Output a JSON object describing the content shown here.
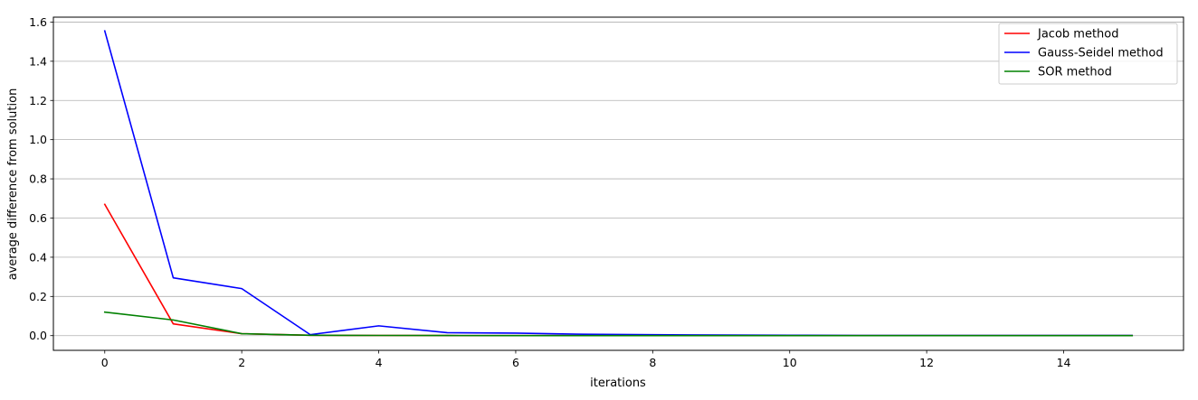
{
  "chart_data": {
    "type": "line",
    "title": "",
    "xlabel": "iterations",
    "ylabel": "average difference from solution",
    "xlim": [
      -0.75,
      15.75
    ],
    "ylim": [
      -0.075,
      1.625
    ],
    "xticks": [
      0,
      2,
      4,
      6,
      8,
      10,
      12,
      14
    ],
    "yticks": [
      0.0,
      0.2,
      0.4,
      0.6,
      0.8,
      1.0,
      1.2,
      1.4,
      1.6
    ],
    "xtick_labels": [
      "0",
      "2",
      "4",
      "6",
      "8",
      "10",
      "12",
      "14"
    ],
    "ytick_labels": [
      "0.0",
      "0.2",
      "0.4",
      "0.6",
      "0.8",
      "1.0",
      "1.2",
      "1.4",
      "1.6"
    ],
    "grid": "horizontal",
    "legend_position": "top-right",
    "x": [
      0,
      1,
      2,
      3,
      4,
      5,
      6,
      7,
      8,
      9,
      10,
      11,
      12,
      13,
      14,
      15
    ],
    "series": [
      {
        "name": "Jacob method",
        "color": "#ff0000",
        "values": [
          0.67,
          0.06,
          0.01,
          0.002,
          0.001,
          0.0005,
          0.0003,
          0.0002,
          0.0001,
          0.0001,
          0.0001,
          0.0,
          0.0,
          0.0,
          0.0,
          0.0
        ]
      },
      {
        "name": "Gauss-Seidel method",
        "color": "#0000ff",
        "values": [
          1.555,
          0.295,
          0.24,
          0.005,
          0.05,
          0.015,
          0.013,
          0.007,
          0.005,
          0.003,
          0.002,
          0.001,
          0.001,
          0.001,
          0.0005,
          0.0005
        ]
      },
      {
        "name": "SOR method",
        "color": "#008000",
        "values": [
          0.12,
          0.08,
          0.01,
          0.002,
          0.001,
          0.0005,
          0.0003,
          0.0002,
          0.0001,
          0.0001,
          0.0,
          0.0,
          0.0,
          0.0,
          0.0,
          0.0
        ]
      }
    ]
  }
}
